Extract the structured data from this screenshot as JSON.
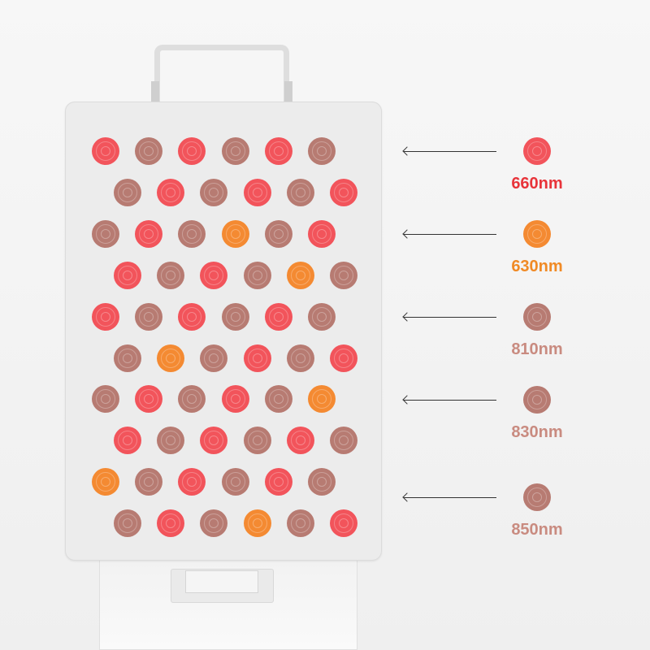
{
  "colors": {
    "R": "#f2545b",
    "O": "#f48a32",
    "B": "#b77b72"
  },
  "legend": [
    {
      "label": "660nm",
      "type": "R",
      "text_color": "#e8343a"
    },
    {
      "label": "630nm",
      "type": "O",
      "text_color": "#f08a25"
    },
    {
      "label": "810nm",
      "type": "B",
      "text_color": "#c98b80"
    },
    {
      "label": "830nm",
      "type": "B",
      "text_color": "#c98b80"
    },
    {
      "label": "850nm",
      "type": "B",
      "text_color": "#c98b80"
    }
  ],
  "led_grid": [
    "RBRBRB",
    "BRBRBR",
    "BRBOBR",
    "RBRBOB",
    "RBRBRB",
    "BOBRBR",
    "BRBRBO",
    "RBRBRB",
    "OBRBRB",
    "BRBOBR"
  ]
}
